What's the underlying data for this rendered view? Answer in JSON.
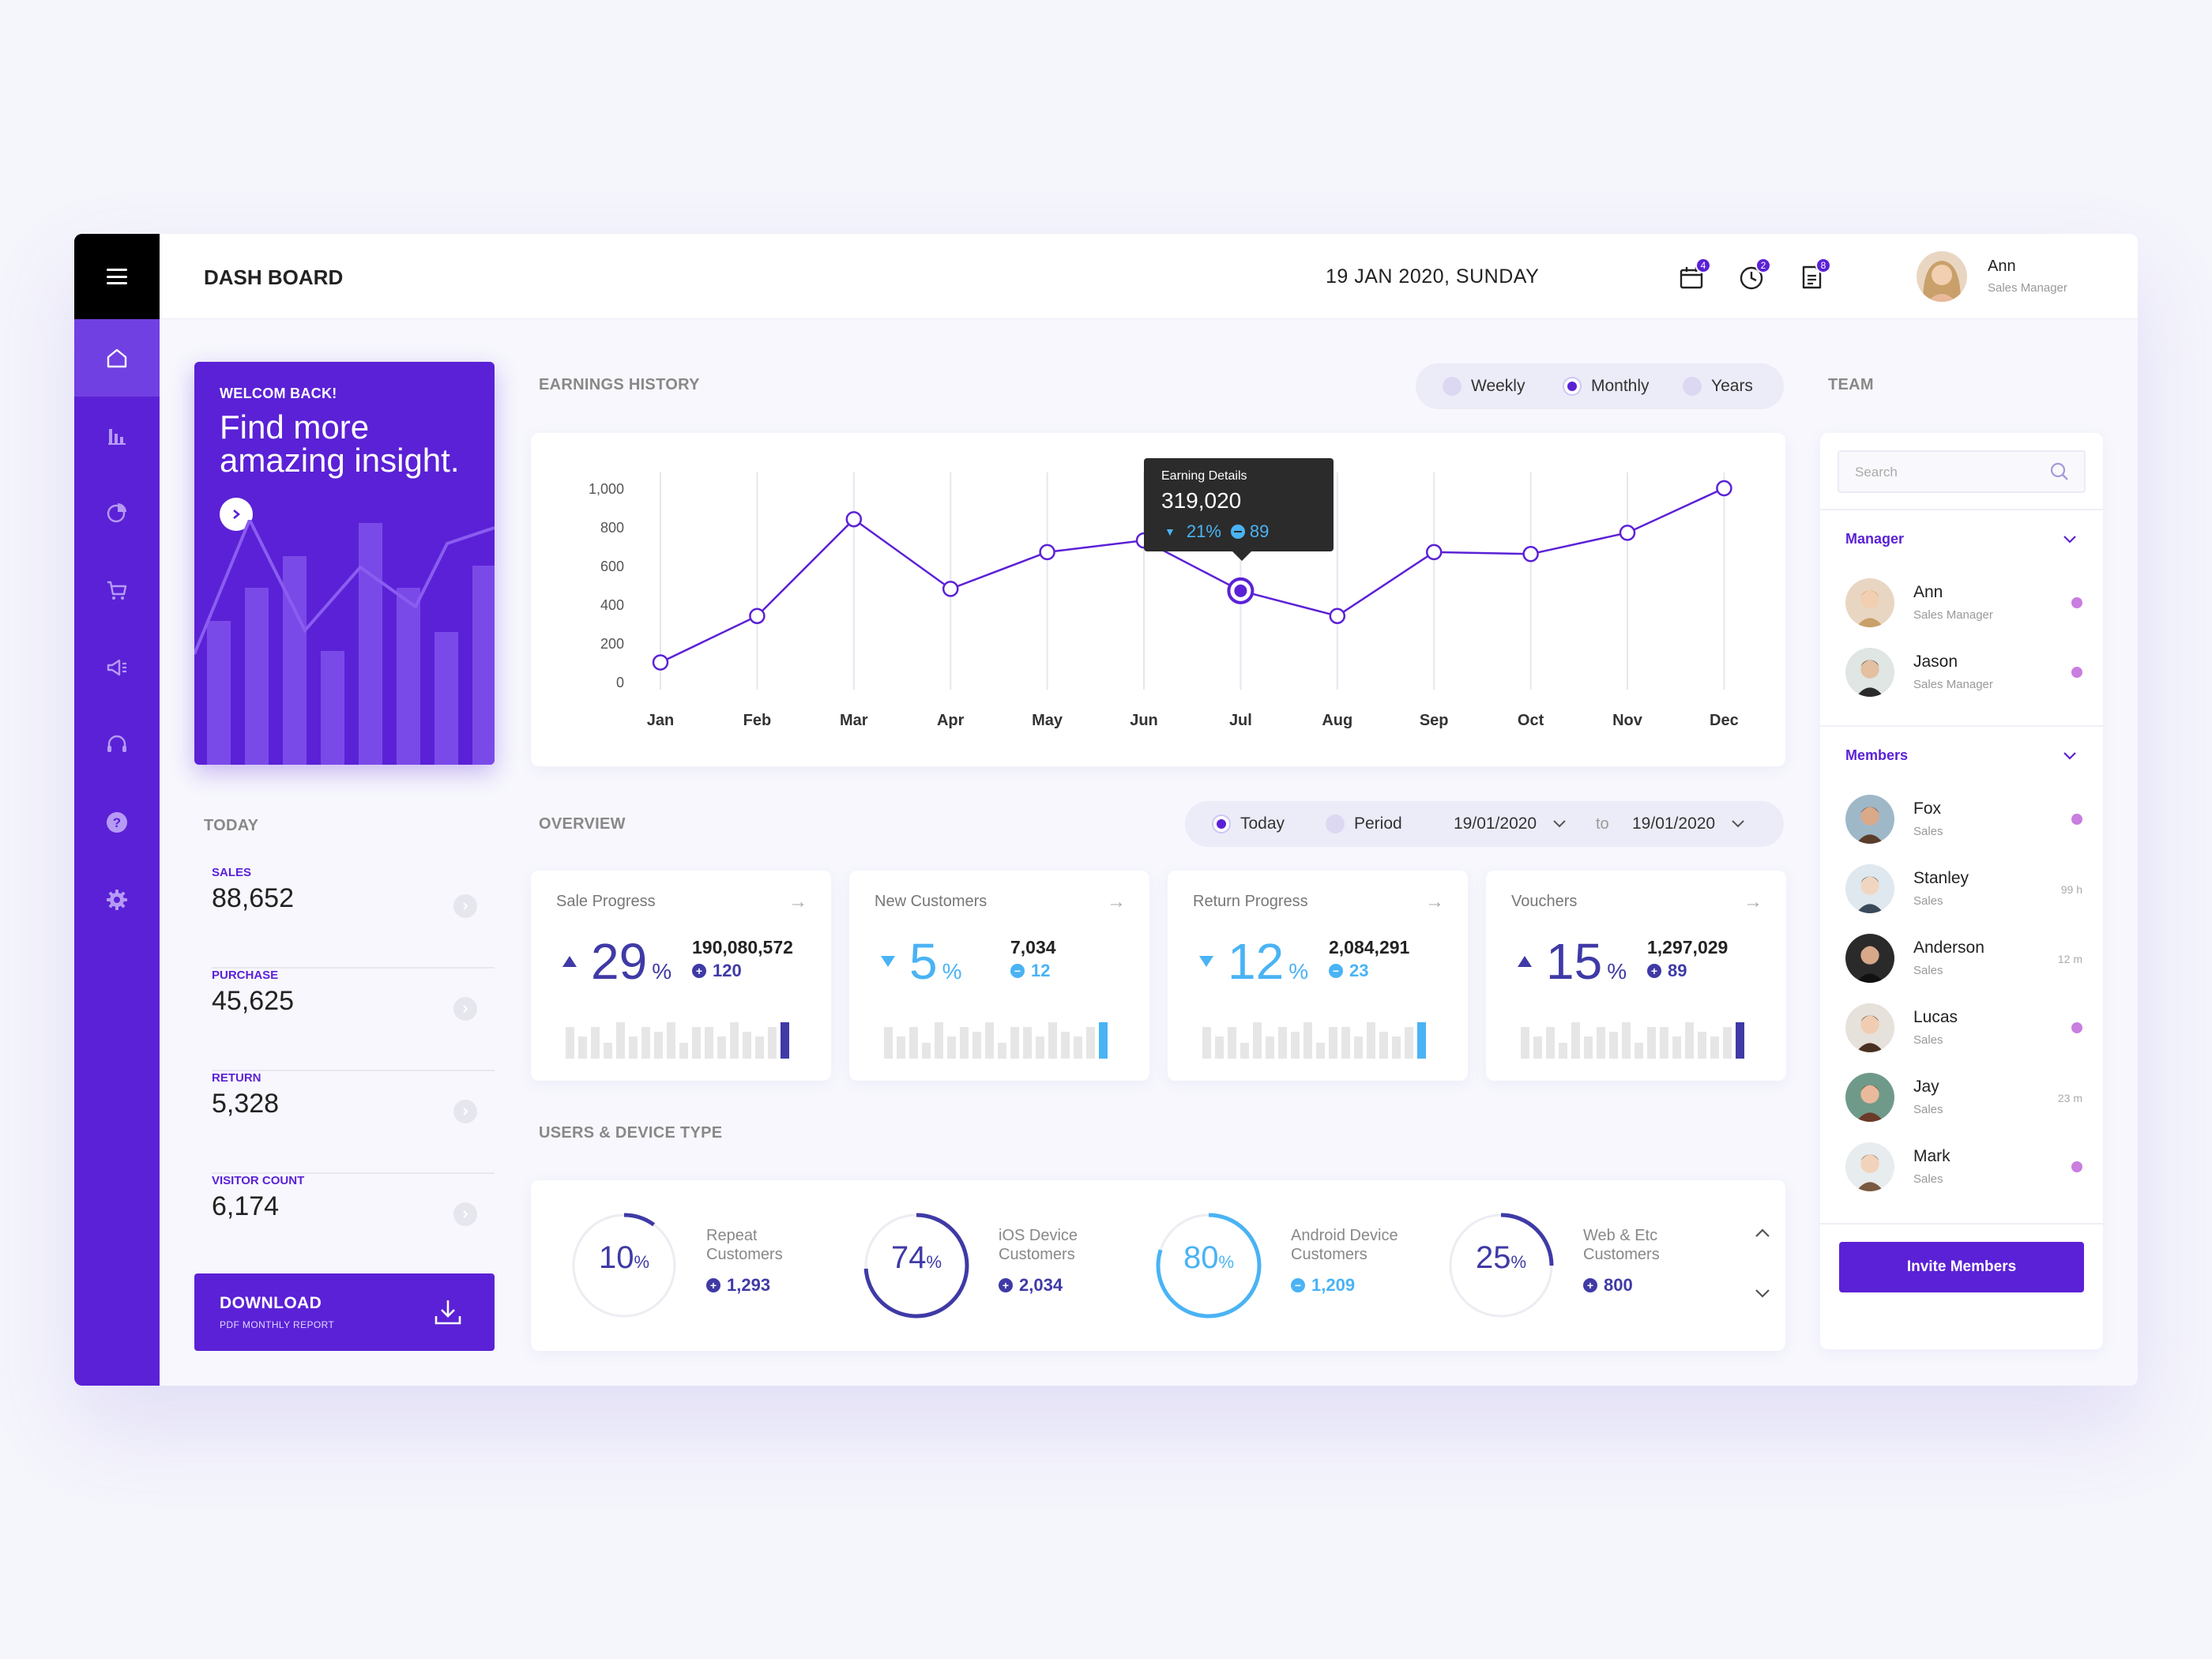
{
  "header": {
    "title": "DASH BOARD",
    "date": "19 JAN 2020, SUNDAY",
    "icons": [
      {
        "name": "calendar-icon",
        "badge": "4"
      },
      {
        "name": "clock-icon",
        "badge": "2"
      },
      {
        "name": "document-icon",
        "badge": "8"
      }
    ],
    "user": {
      "name": "Ann",
      "role": "Sales Manager"
    }
  },
  "sidebar": {
    "items": [
      "home-icon",
      "bar-chart-icon",
      "pie-chart-icon",
      "cart-icon",
      "megaphone-icon",
      "headset-icon",
      "help-icon",
      "settings-icon"
    ],
    "active": "home-icon"
  },
  "welcome": {
    "small": "WELCOM BACK!",
    "big": "Find more amazing insight."
  },
  "today": {
    "label": "TODAY",
    "stats": [
      {
        "label": "SALES",
        "value": "88,652"
      },
      {
        "label": "PURCHASE",
        "value": "45,625"
      },
      {
        "label": "RETURN",
        "value": "5,328"
      },
      {
        "label": "VISITOR COUNT",
        "value": "6,174"
      }
    ]
  },
  "download": {
    "title": "DOWNLOAD",
    "subtitle": "PDF MONTHLY REPORT"
  },
  "earnings": {
    "label": "EARNINGS HISTORY",
    "periods": [
      "Weekly",
      "Monthly",
      "Years"
    ],
    "selected_period": "Monthly",
    "tooltip": {
      "title": "Earning Details",
      "value": "319,020",
      "pct": "21%",
      "count": "89"
    }
  },
  "chart_data": {
    "type": "line",
    "categories": [
      "Jan",
      "Feb",
      "Mar",
      "Apr",
      "May",
      "Jun",
      "Jul",
      "Aug",
      "Sep",
      "Oct",
      "Nov",
      "Dec"
    ],
    "values": [
      100,
      340,
      840,
      480,
      670,
      730,
      470,
      340,
      670,
      660,
      770,
      1000
    ],
    "ylim": [
      0,
      1000
    ],
    "yticks": [
      "0",
      "200",
      "400",
      "600",
      "800",
      "1,000"
    ],
    "highlight_index": 6,
    "grid": "vertical",
    "color": "#5b21d6"
  },
  "overview": {
    "label": "OVERVIEW",
    "filters": [
      "Today",
      "Period"
    ],
    "selected_filter": "Today",
    "from": "19/01/2020",
    "to_label": "to",
    "to": "19/01/2020",
    "cards": [
      {
        "title": "Sale Progress",
        "pct": "29",
        "amount": "190,080,572",
        "sub": "120",
        "dir": "up",
        "color": "#3f3aa6"
      },
      {
        "title": "New Customers",
        "pct": "5",
        "amount": "7,034",
        "sub": "12",
        "dir": "down",
        "color": "#4ab3f4"
      },
      {
        "title": "Return Progress",
        "pct": "12",
        "amount": "2,084,291",
        "sub": "23",
        "dir": "down",
        "color": "#4ab3f4"
      },
      {
        "title": "Vouchers",
        "pct": "15",
        "amount": "1,297,029",
        "sub": "89",
        "dir": "up",
        "color": "#3f3aa6"
      }
    ],
    "pct_sign": "%"
  },
  "devices": {
    "label": "USERS & DEVICE TYPE",
    "items": [
      {
        "pct": "10",
        "line1": "Repeat",
        "line2": "Customers",
        "count": "1,293",
        "color": "#3f3aa6",
        "progress": 0.1
      },
      {
        "pct": "74",
        "line1": "iOS Device",
        "line2": "Customers",
        "count": "2,034",
        "color": "#3f3aa6",
        "progress": 0.74
      },
      {
        "pct": "80",
        "line1": "Android Device",
        "line2": "Customers",
        "count": "1,209",
        "color": "#4ab3f4",
        "progress": 0.8
      },
      {
        "pct": "25",
        "line1": "Web & Etc",
        "line2": "Customers",
        "count": "800",
        "color": "#3f3aa6",
        "progress": 0.25
      }
    ]
  },
  "team": {
    "label": "TEAM",
    "search_placeholder": "Search",
    "manager_label": "Manager",
    "members_label": "Members",
    "managers": [
      {
        "name": "Ann",
        "role": "Sales Manager",
        "status": "online"
      },
      {
        "name": "Jason",
        "role": "Sales Manager",
        "status": "online"
      }
    ],
    "members": [
      {
        "name": "Fox",
        "role": "Sales",
        "status": "online"
      },
      {
        "name": "Stanley",
        "role": "Sales",
        "status": "99 h"
      },
      {
        "name": "Anderson",
        "role": "Sales",
        "status": "12 m"
      },
      {
        "name": "Lucas",
        "role": "Sales",
        "status": "online"
      },
      {
        "name": "Jay",
        "role": "Sales",
        "status": "23 m"
      },
      {
        "name": "Mark",
        "role": "Sales",
        "status": "online"
      }
    ],
    "invite_label": "Invite Members"
  }
}
